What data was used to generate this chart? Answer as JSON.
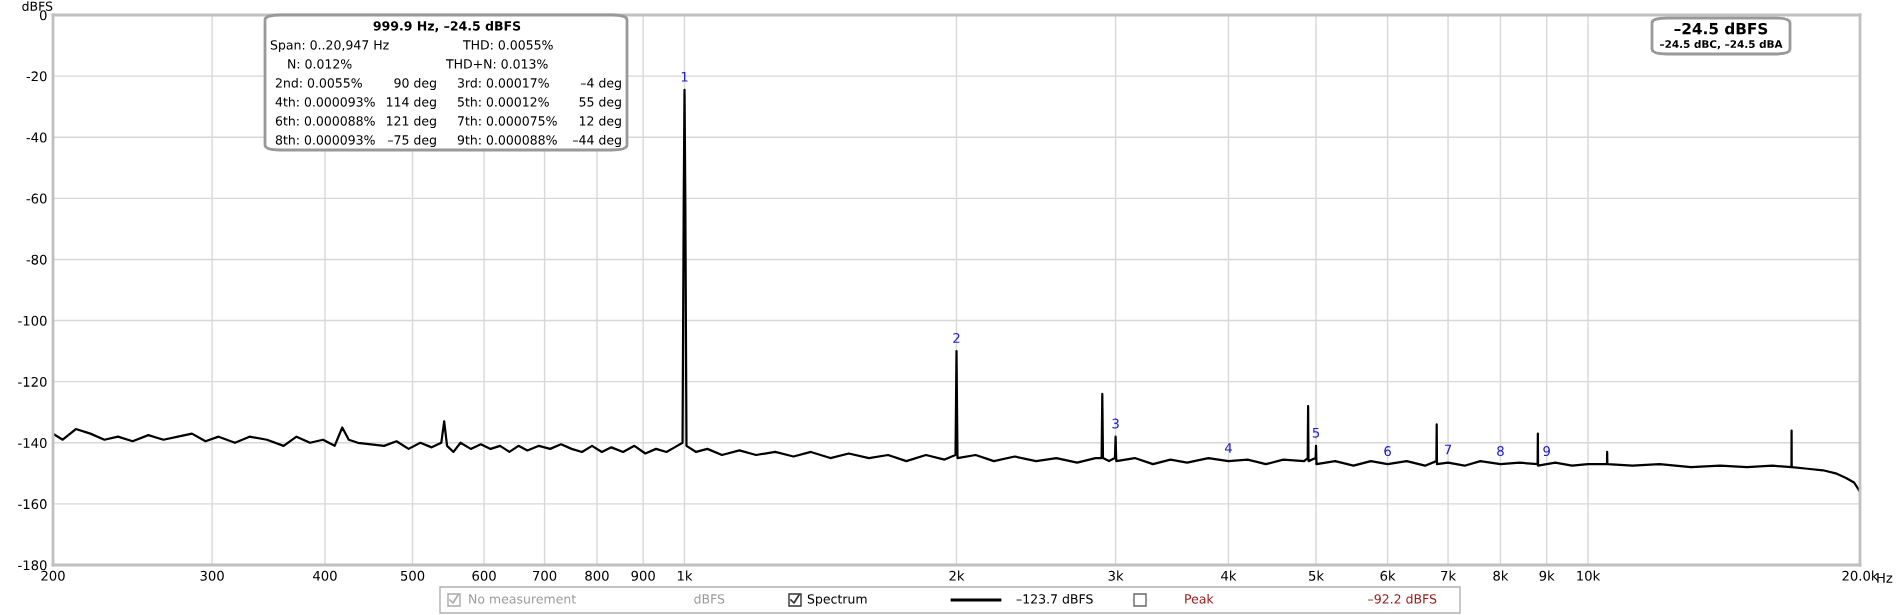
{
  "chart_data": {
    "type": "line",
    "ylabel": "dBFS",
    "log": "x",
    "grid": true,
    "legend": "bottom",
    "marker": "none",
    "line_style": "solid",
    "xlim": [
      200,
      20000
    ],
    "ylim": [
      -180,
      0
    ],
    "xticks": [
      200,
      300,
      400,
      500,
      600,
      700,
      800,
      900,
      {
        "value": 1000,
        "label": "1k"
      },
      {
        "value": 2000,
        "label": "2k"
      },
      {
        "value": 3000,
        "label": "3k"
      },
      {
        "value": 4000,
        "label": "4k"
      },
      {
        "value": 5000,
        "label": "5k"
      },
      {
        "value": 6000,
        "label": "6k"
      },
      {
        "value": 7000,
        "label": "7k"
      },
      {
        "value": 8000,
        "label": "8k"
      },
      {
        "value": 9000,
        "label": "9k"
      },
      {
        "value": 10000,
        "label": "10k"
      },
      {
        "value": 20000,
        "label": "20.0k"
      }
    ],
    "xlabel": "Hz",
    "yticks": [
      -180,
      -160,
      -140,
      -120,
      -100,
      -80,
      -60,
      -40,
      -20,
      0
    ],
    "x": [
      200,
      205,
      212,
      220,
      228,
      236,
      245,
      255,
      265,
      275,
      285,
      295,
      305,
      318,
      330,
      345,
      360,
      372,
      385,
      398,
      410,
      418,
      425,
      435,
      450,
      465,
      480,
      495,
      510,
      525,
      538,
      542,
      546,
      555,
      565,
      580,
      595,
      610,
      625,
      640,
      655,
      670,
      690,
      710,
      730,
      750,
      770,
      790,
      810,
      830,
      855,
      880,
      905,
      930,
      955,
      975,
      995,
      998,
      1000,
      1002,
      1005,
      1030,
      1060,
      1100,
      1150,
      1200,
      1260,
      1320,
      1380,
      1450,
      1520,
      1600,
      1680,
      1760,
      1850,
      1940,
      1995,
      2000,
      2005,
      2100,
      2200,
      2320,
      2450,
      2580,
      2720,
      2850,
      2895,
      2900,
      2905,
      2950,
      2995,
      3000,
      3005,
      3150,
      3300,
      3450,
      3600,
      3800,
      4000,
      4200,
      4400,
      4600,
      4850,
      4895,
      4900,
      4905,
      4995,
      5000,
      5005,
      5250,
      5500,
      5750,
      6000,
      6300,
      6600,
      6795,
      6800,
      6805,
      7000,
      7300,
      7600,
      8000,
      8400,
      8795,
      8800,
      8805,
      9200,
      9600,
      10000,
      10495,
      10500,
      10505,
      11200,
      12000,
      13000,
      14000,
      15000,
      16000,
      16795,
      16800,
      16805,
      17500,
      18200,
      18800,
      19300,
      19700,
      20000
    ],
    "series": [
      {
        "name": "Spectrum",
        "color": "#000000",
        "values": [
          -137,
          -139,
          -135.5,
          -137,
          -139,
          -138,
          -139.5,
          -137.5,
          -139,
          -138,
          -137,
          -139.5,
          -138,
          -140,
          -138,
          -139,
          -141,
          -138,
          -140,
          -139,
          -141,
          -135,
          -139,
          -140,
          -140.5,
          -141,
          -139.5,
          -142,
          -140,
          -141.5,
          -140,
          -133,
          -141,
          -143,
          -140,
          -142,
          -140.5,
          -142,
          -141,
          -143,
          -141,
          -142.5,
          -141,
          -142,
          -140.5,
          -142,
          -143,
          -141,
          -143,
          -141.5,
          -143,
          -141,
          -143.5,
          -142,
          -143,
          -141.5,
          -140,
          -60,
          -24.5,
          -60,
          -141,
          -143,
          -142,
          -144,
          -142.5,
          -144,
          -143,
          -144.5,
          -143,
          -145,
          -143.5,
          -145,
          -144,
          -146,
          -144,
          -145.5,
          -144,
          -110,
          -145,
          -144,
          -146,
          -144.5,
          -146,
          -145,
          -146.5,
          -145,
          -145,
          -124,
          -145,
          -146,
          -145,
          -138,
          -146,
          -145,
          -147,
          -145.5,
          -146.5,
          -145,
          -146,
          -145.5,
          -147,
          -145.5,
          -146,
          -145,
          -128,
          -146,
          -145,
          -141,
          -147,
          -146,
          -147.5,
          -146,
          -147,
          -146,
          -147.5,
          -146,
          -134,
          -147,
          -146.5,
          -147.5,
          -146,
          -147,
          -146.5,
          -147,
          -137,
          -147.5,
          -146.5,
          -147.5,
          -147,
          -147,
          -143,
          -147,
          -147.5,
          -147,
          -148,
          -147.5,
          -148,
          -147.5,
          -148,
          -136,
          -148,
          -148.5,
          -149,
          -150,
          -151.5,
          -153,
          -156
        ]
      }
    ],
    "annotations": [
      "999.9 Hz, –24.5 dBFS",
      "Span: 0..20,947 Hz",
      "THD: 0.0055%",
      "N: 0.012%",
      "THD+N: 0.013%",
      "2nd: 0.0055%",
      "90 deg",
      "3rd: 0.00017%",
      "–4 deg",
      "4th: 0.000093%",
      "114 deg",
      "5th: 0.00012%",
      "55 deg",
      "6th: 0.000088%",
      "121 deg",
      "7th: 0.000075%",
      "12 deg",
      "8th: 0.000093%",
      "–75 deg",
      "9th: 0.000088%",
      "–44 deg",
      "–24.5 dBFS",
      "–24.5 dBC, –24.5 dBA",
      "No measurement",
      "dBFS",
      "–123.7 dBFS",
      "Peak",
      "–92.2 dBFS",
      {
        "text": "1",
        "x": 1000,
        "y": -24.5
      },
      {
        "text": "2",
        "x": 2000,
        "y": -110
      },
      {
        "text": "3",
        "x": 3000,
        "y": -138
      },
      {
        "text": "4",
        "x": 4000,
        "y": -146
      },
      {
        "text": "5",
        "x": 5000,
        "y": -141
      },
      {
        "text": "6",
        "x": 6000,
        "y": -147
      },
      {
        "text": "7",
        "x": 7000,
        "y": -146.5
      },
      {
        "text": "8",
        "x": 8000,
        "y": -147
      },
      {
        "text": "9",
        "x": 9000,
        "y": -147
      }
    ]
  }
}
